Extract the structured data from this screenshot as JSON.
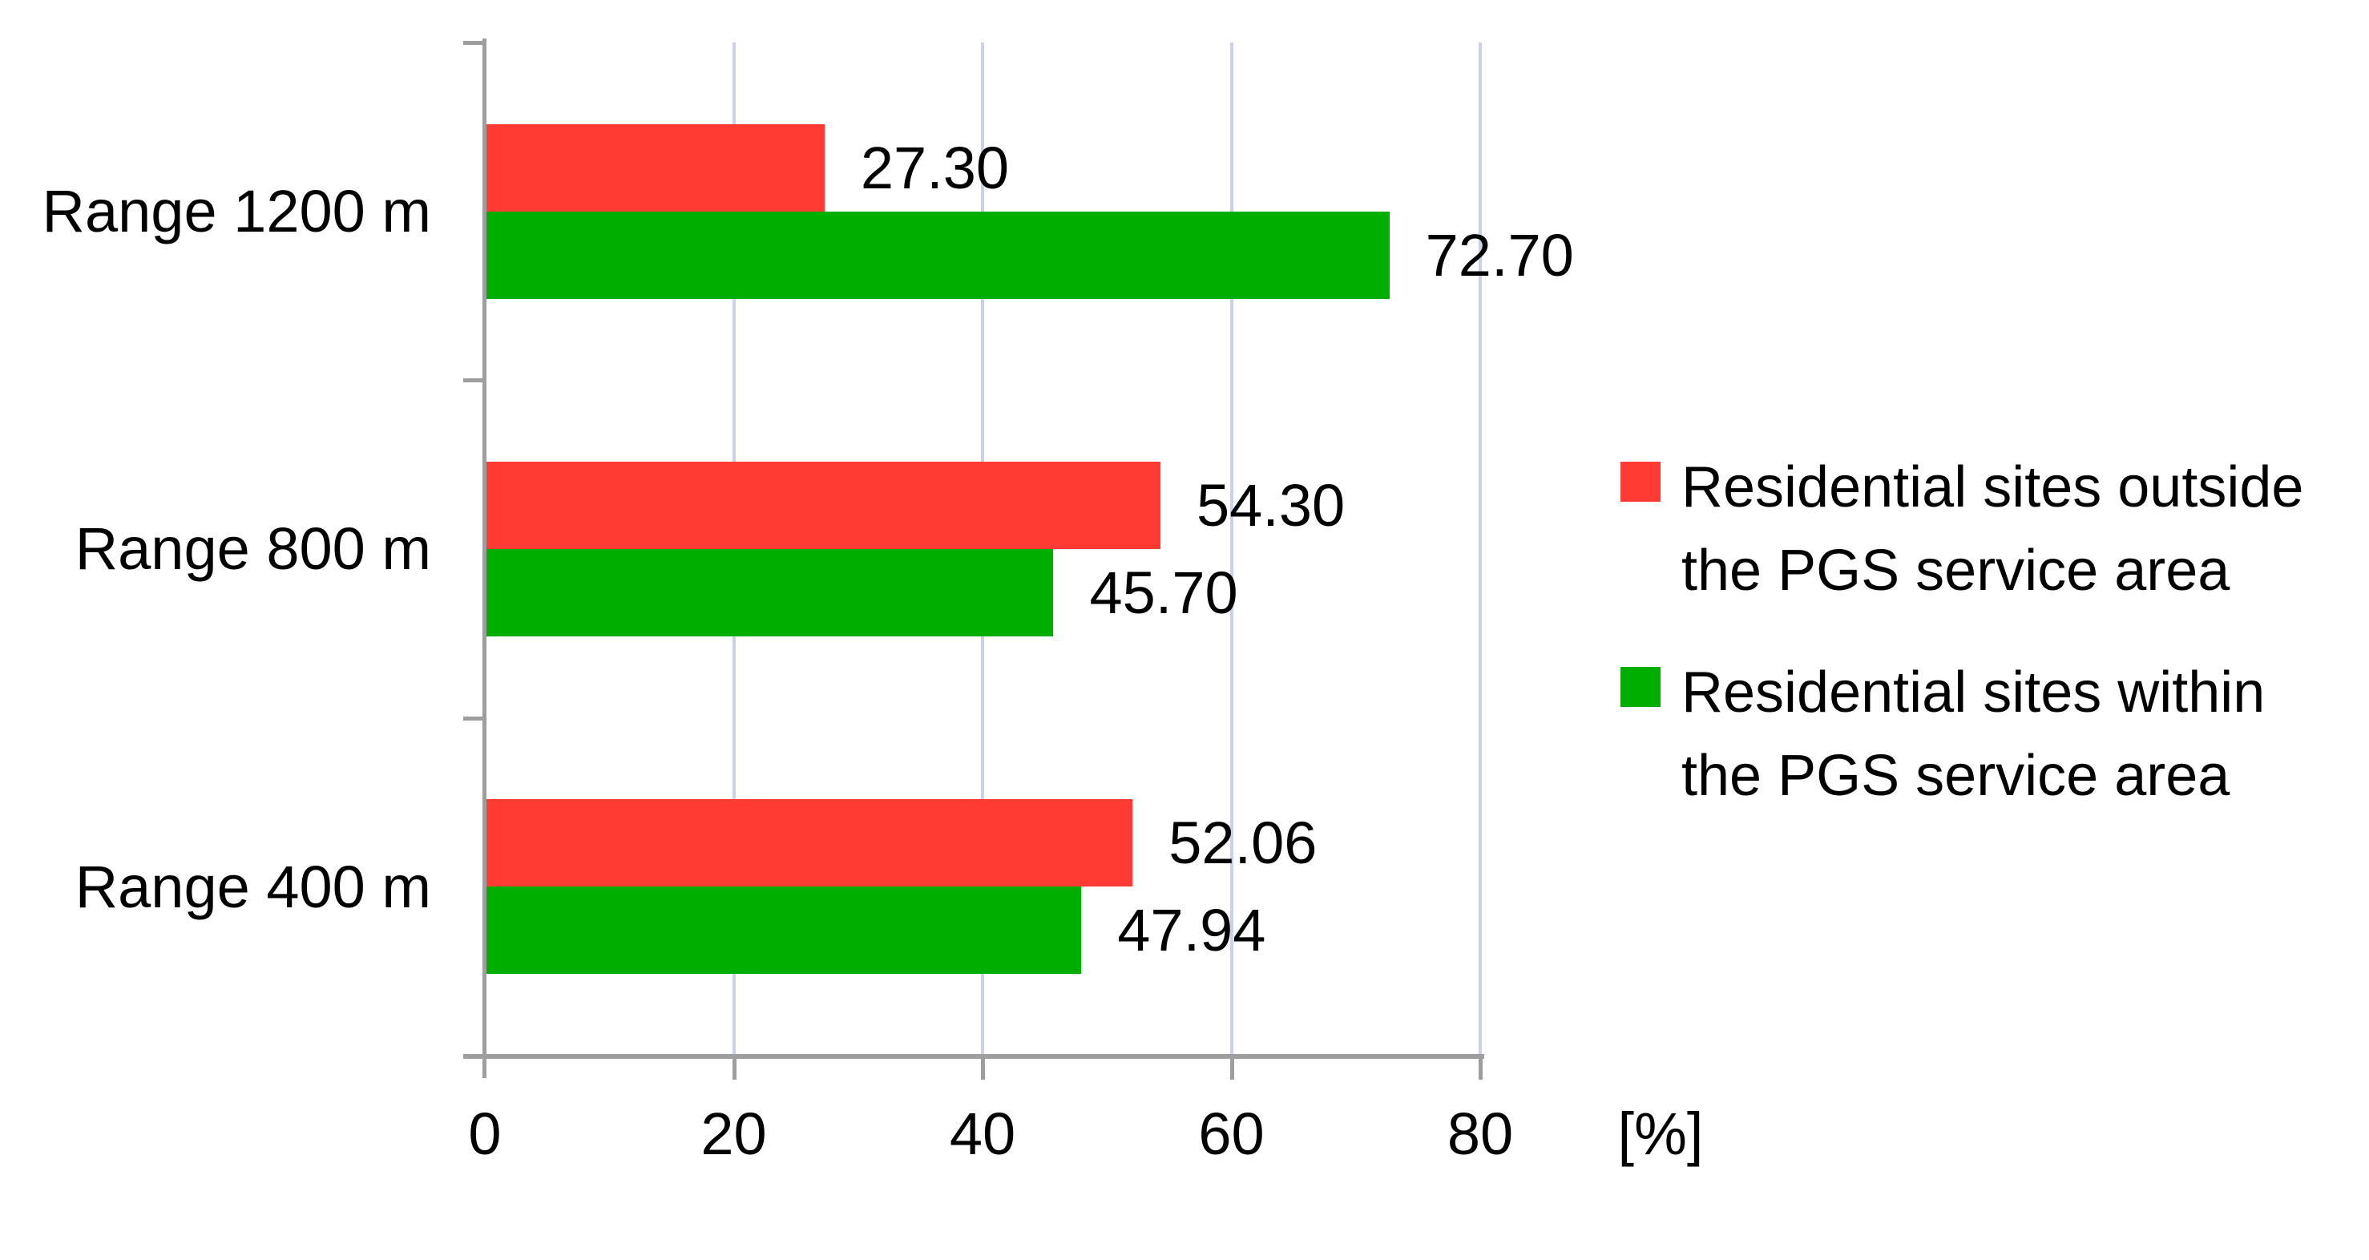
{
  "chart_data": {
    "type": "bar",
    "orientation": "horizontal",
    "title": "",
    "categories": [
      "Range 1200 m",
      "Range 800 m",
      "Range 400 m"
    ],
    "series": [
      {
        "name": "Residential sites outside the PGS service area",
        "color": "#ff3b33",
        "values": [
          27.3,
          54.3,
          52.06
        ],
        "value_labels": [
          "27.30",
          "54.30",
          "52.06"
        ]
      },
      {
        "name": "Residential sites within the PGS service area",
        "color": "#00ae00",
        "values": [
          72.7,
          45.7,
          47.94
        ],
        "value_labels": [
          "72.70",
          "45.70",
          "47.94"
        ]
      }
    ],
    "x_axis": {
      "tick_labels": [
        "0",
        "20",
        "40",
        "60",
        "80"
      ],
      "tick_values": [
        0,
        20,
        40,
        60,
        80
      ],
      "min": 0,
      "max": 80,
      "unit_label": "[%]"
    },
    "grid": true,
    "legend_position": "right"
  },
  "legend": {
    "items": [
      {
        "color": "#ff3b33",
        "lines": [
          "Residential sites outside",
          "the PGS service area"
        ]
      },
      {
        "color": "#00ae00",
        "lines": [
          "Residential sites within",
          "the PGS service area"
        ]
      }
    ]
  },
  "colors": {
    "axis": "#9e9e9e",
    "gridline": "#c9d2e8",
    "text": "#000000",
    "background": "#ffffff"
  }
}
